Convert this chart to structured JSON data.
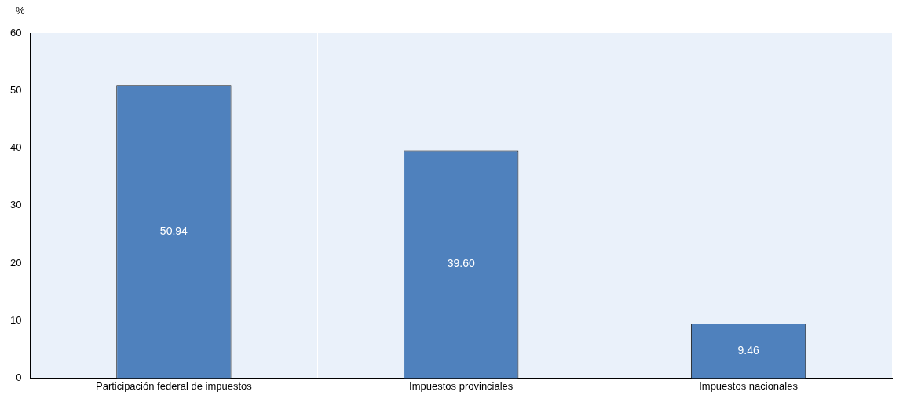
{
  "chart_data": {
    "type": "bar",
    "ylabel": "%",
    "categories": [
      "Participación federal de impuestos",
      "Impuestos provinciales",
      "Impuestos nacionales"
    ],
    "values": [
      50.94,
      39.6,
      9.46
    ],
    "value_labels": [
      "50.94",
      "39.60",
      "9.46"
    ],
    "color": "#4f81bd",
    "ylim": [
      0,
      60
    ],
    "yticks": [
      0,
      10,
      20,
      30,
      40,
      50,
      60
    ],
    "grid": "x",
    "legend": false
  }
}
